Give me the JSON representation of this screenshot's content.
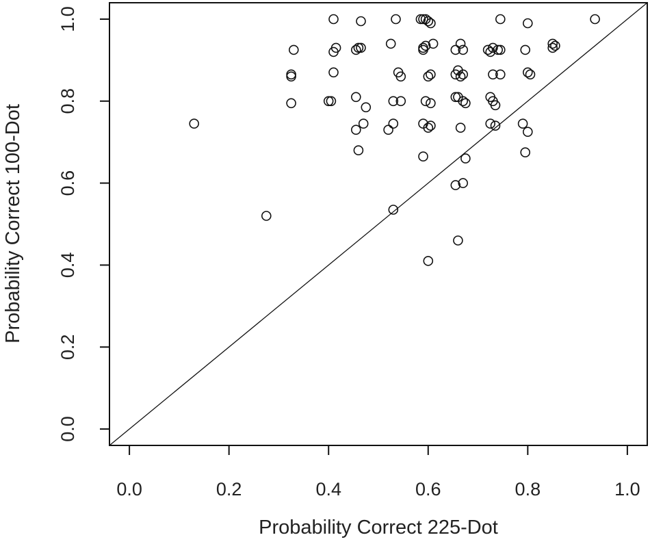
{
  "chart_data": {
    "type": "scatter",
    "title": "",
    "xlabel": "Probability Correct 225-Dot",
    "ylabel": "Probability Correct 100-Dot",
    "xlim": [
      -0.04,
      1.04
    ],
    "ylim": [
      -0.04,
      1.04
    ],
    "xticks": [
      "0.0",
      "0.2",
      "0.4",
      "0.6",
      "0.8",
      "1.0"
    ],
    "yticks": [
      "0.0",
      "0.2",
      "0.4",
      "0.6",
      "0.8",
      "1.0"
    ],
    "reference_line": "y = x",
    "grid": false,
    "marker": "open-circle",
    "points": [
      [
        0.13,
        0.745
      ],
      [
        0.275,
        0.52
      ],
      [
        0.325,
        0.865
      ],
      [
        0.325,
        0.86
      ],
      [
        0.33,
        0.925
      ],
      [
        0.325,
        0.795
      ],
      [
        0.4,
        0.8
      ],
      [
        0.405,
        0.8
      ],
      [
        0.41,
        1.0
      ],
      [
        0.41,
        0.92
      ],
      [
        0.415,
        0.93
      ],
      [
        0.41,
        0.87
      ],
      [
        0.455,
        0.925
      ],
      [
        0.46,
        0.93
      ],
      [
        0.465,
        0.995
      ],
      [
        0.465,
        0.93
      ],
      [
        0.455,
        0.81
      ],
      [
        0.455,
        0.73
      ],
      [
        0.46,
        0.68
      ],
      [
        0.47,
        0.745
      ],
      [
        0.475,
        0.785
      ],
      [
        0.52,
        0.73
      ],
      [
        0.525,
        0.94
      ],
      [
        0.53,
        0.8
      ],
      [
        0.535,
        1.0
      ],
      [
        0.53,
        0.745
      ],
      [
        0.54,
        0.87
      ],
      [
        0.545,
        0.86
      ],
      [
        0.545,
        0.8
      ],
      [
        0.53,
        0.535
      ],
      [
        0.585,
        1.0
      ],
      [
        0.59,
        1.0
      ],
      [
        0.595,
        1.0
      ],
      [
        0.6,
        0.995
      ],
      [
        0.605,
        0.99
      ],
      [
        0.59,
        0.925
      ],
      [
        0.595,
        0.935
      ],
      [
        0.59,
        0.93
      ],
      [
        0.61,
        0.94
      ],
      [
        0.6,
        0.86
      ],
      [
        0.605,
        0.865
      ],
      [
        0.595,
        0.8
      ],
      [
        0.605,
        0.795
      ],
      [
        0.59,
        0.745
      ],
      [
        0.6,
        0.735
      ],
      [
        0.605,
        0.74
      ],
      [
        0.59,
        0.665
      ],
      [
        0.6,
        0.41
      ],
      [
        0.655,
        0.925
      ],
      [
        0.665,
        0.94
      ],
      [
        0.67,
        0.925
      ],
      [
        0.66,
        0.875
      ],
      [
        0.655,
        0.865
      ],
      [
        0.665,
        0.86
      ],
      [
        0.67,
        0.865
      ],
      [
        0.655,
        0.81
      ],
      [
        0.66,
        0.81
      ],
      [
        0.67,
        0.8
      ],
      [
        0.675,
        0.795
      ],
      [
        0.665,
        0.735
      ],
      [
        0.675,
        0.66
      ],
      [
        0.655,
        0.595
      ],
      [
        0.67,
        0.6
      ],
      [
        0.66,
        0.46
      ],
      [
        0.72,
        0.925
      ],
      [
        0.725,
        0.92
      ],
      [
        0.73,
        0.93
      ],
      [
        0.74,
        0.925
      ],
      [
        0.745,
        0.925
      ],
      [
        0.745,
        1.0
      ],
      [
        0.73,
        0.865
      ],
      [
        0.745,
        0.865
      ],
      [
        0.725,
        0.81
      ],
      [
        0.73,
        0.8
      ],
      [
        0.735,
        0.79
      ],
      [
        0.725,
        0.745
      ],
      [
        0.735,
        0.74
      ],
      [
        0.79,
        0.745
      ],
      [
        0.795,
        0.925
      ],
      [
        0.8,
        0.99
      ],
      [
        0.805,
        0.865
      ],
      [
        0.8,
        0.87
      ],
      [
        0.8,
        0.725
      ],
      [
        0.795,
        0.675
      ],
      [
        0.85,
        0.94
      ],
      [
        0.85,
        0.93
      ],
      [
        0.855,
        0.935
      ],
      [
        0.935,
        1.0
      ]
    ]
  }
}
